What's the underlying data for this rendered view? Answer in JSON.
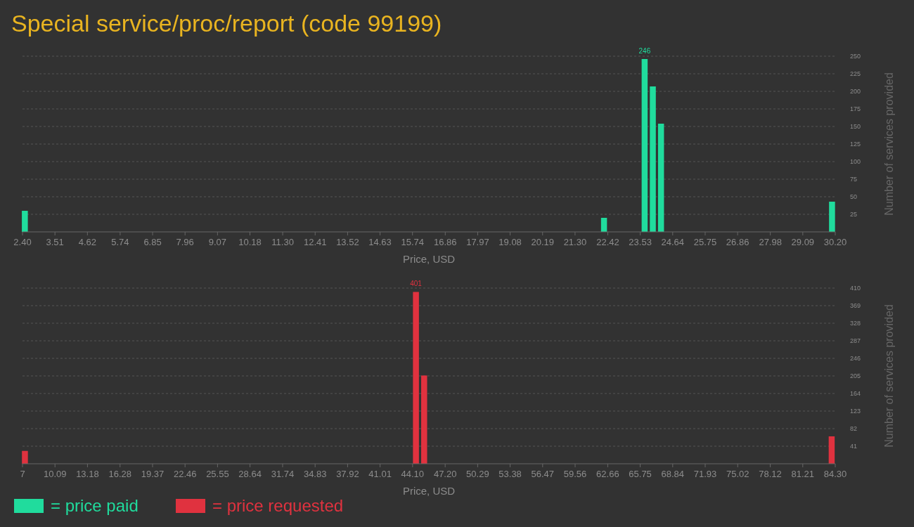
{
  "chart_data": [
    {
      "type": "bar",
      "title": "Special service/proc/report (code 99199)",
      "xlabel": "Price, USD",
      "ylabel": "Number of services provided",
      "grid": "y",
      "legend": "bottom left",
      "xlim": [
        2.4,
        30.2
      ],
      "xticks": [
        {
          "value": 2.4,
          "label": "2.40"
        },
        3.51,
        4.62,
        5.74,
        6.85,
        7.96,
        9.07,
        10.18,
        {
          "value": 11.3,
          "label": "11.30"
        },
        12.41,
        13.52,
        14.63,
        15.74,
        16.86,
        17.97,
        19.08,
        20.19,
        {
          "value": 21.3,
          "label": "21.30"
        },
        22.42,
        23.53,
        24.64,
        25.75,
        26.86,
        27.98,
        29.09,
        {
          "value": 30.2,
          "label": "30.20"
        }
      ],
      "ylim": [
        0,
        250
      ],
      "yticks": [
        25,
        50,
        75,
        100,
        125,
        150,
        175,
        200,
        225,
        250
      ],
      "series": [
        {
          "name": "= price paid",
          "color": "#20dc9d",
          "x": [
            2.48,
            22.29,
            23.68,
            23.96,
            24.24,
            30.09
          ],
          "values": [
            30,
            20,
            246,
            207,
            154,
            43
          ],
          "value_labels": [
            null,
            null,
            "246",
            null,
            null,
            null
          ]
        }
      ]
    },
    {
      "type": "bar",
      "xlabel": "Price, USD",
      "ylabel": "Number of services provided",
      "grid": "y",
      "legend": "bottom left",
      "xlim": [
        7,
        84.3
      ],
      "xticks": [
        7,
        10.09,
        13.18,
        16.28,
        19.37,
        22.46,
        25.55,
        28.64,
        31.74,
        34.83,
        37.92,
        41.01,
        {
          "value": 44.1,
          "label": "44.10"
        },
        {
          "value": 47.2,
          "label": "47.20"
        },
        50.29,
        53.38,
        56.47,
        59.56,
        62.66,
        65.75,
        68.84,
        71.93,
        75.02,
        78.12,
        81.21,
        {
          "value": 84.3,
          "label": "84.30"
        }
      ],
      "ylim": [
        0,
        410
      ],
      "yticks": [
        41,
        82,
        123,
        164,
        205,
        246,
        287,
        328,
        369,
        410
      ],
      "series": [
        {
          "name": "= price requested",
          "color": "#e0323f",
          "x": [
            7.23,
            44.42,
            45.2,
            83.96
          ],
          "values": [
            30,
            401,
            206,
            64
          ],
          "value_labels": [
            null,
            "401",
            null,
            null
          ]
        }
      ]
    }
  ]
}
